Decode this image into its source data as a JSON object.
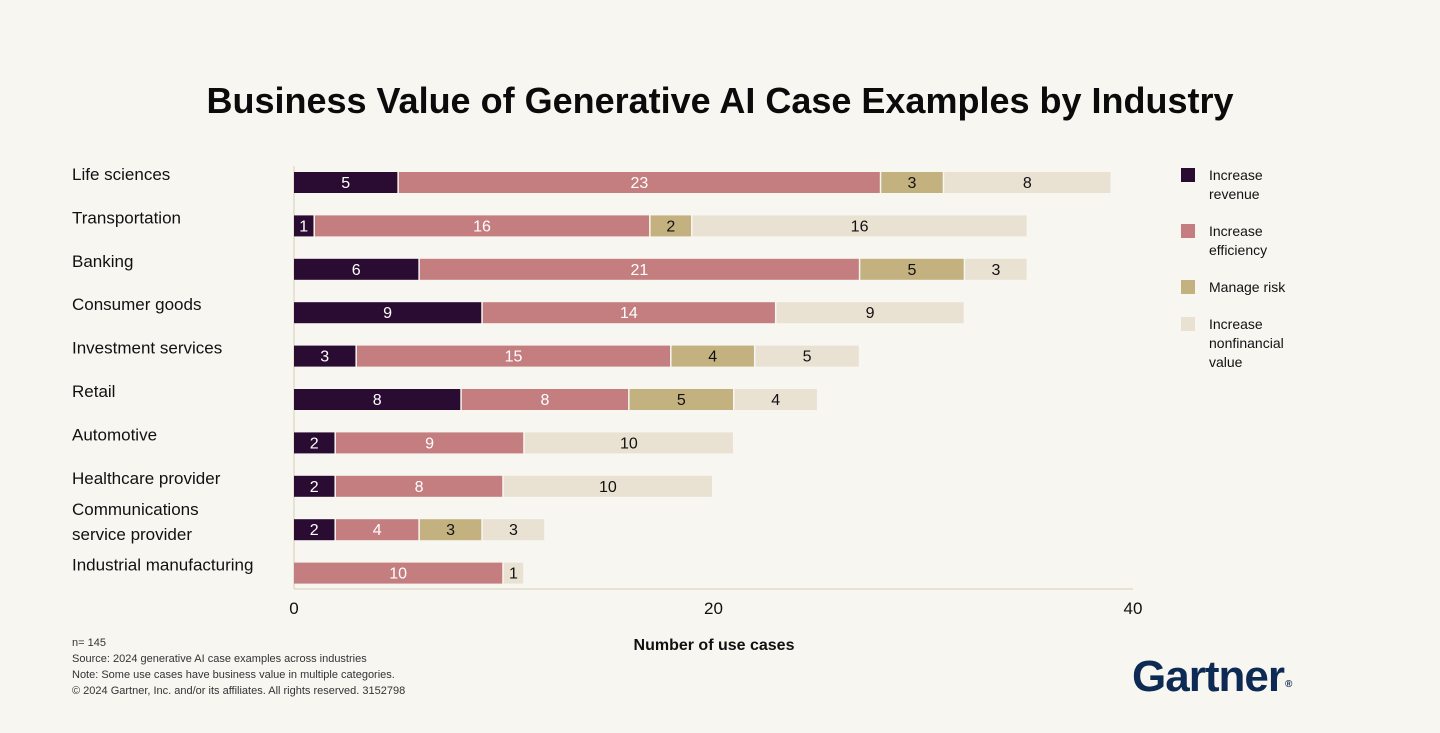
{
  "chart_data": {
    "type": "bar",
    "orientation": "horizontal",
    "stacked": true,
    "title": "Business Value of Generative AI Case Examples by Industry",
    "xlabel": "Number of use cases",
    "ylabel": "",
    "xlim": [
      0,
      40
    ],
    "xticks": [
      0,
      20,
      40
    ],
    "categories": [
      [
        "Life sciences"
      ],
      [
        "Transportation"
      ],
      [
        "Banking"
      ],
      [
        "Consumer goods"
      ],
      [
        "Investment services"
      ],
      [
        "Retail"
      ],
      [
        "Automotive"
      ],
      [
        "Healthcare provider"
      ],
      [
        "Communications",
        "service provider"
      ],
      [
        "Industrial manufacturing"
      ]
    ],
    "series": [
      {
        "name": "Increase revenue",
        "color": "#2a0c32",
        "text_color": "#ffffff",
        "values": [
          5,
          1,
          6,
          9,
          3,
          8,
          2,
          2,
          2,
          0
        ]
      },
      {
        "name": "Increase efficiency",
        "color": "#c47e80",
        "text_color": "#ffffff",
        "values": [
          23,
          16,
          21,
          14,
          15,
          8,
          9,
          8,
          4,
          10
        ]
      },
      {
        "name": "Manage risk",
        "color": "#c3b27f",
        "text_color": "#111111",
        "values": [
          3,
          2,
          5,
          0,
          4,
          5,
          0,
          0,
          3,
          0
        ]
      },
      {
        "name": "Increase nonfinancial value",
        "color": "#e9e2d2",
        "text_color": "#111111",
        "values": [
          8,
          16,
          3,
          9,
          5,
          4,
          10,
          10,
          3,
          1
        ]
      }
    ],
    "legend_position": "right",
    "grid": false
  },
  "legend": [
    {
      "lines": [
        "Increase",
        "revenue"
      ],
      "color": "#2a0c32"
    },
    {
      "lines": [
        "Increase",
        "efficiency"
      ],
      "color": "#c47e80"
    },
    {
      "lines": [
        "Manage risk"
      ],
      "color": "#c3b27f"
    },
    {
      "lines": [
        "Increase",
        "nonfinancial",
        "value"
      ],
      "color": "#e9e2d2"
    }
  ],
  "footnotes": {
    "n": "n=  145",
    "source": "Source: 2024 generative AI case examples across industries",
    "note": "Note: Some use cases have business value in multiple categories.",
    "copyright": "© 2024 Gartner, Inc. and/or its affiliates. All rights reserved. 3152798"
  },
  "brand": {
    "name": "Gartner",
    "mark": "®"
  }
}
